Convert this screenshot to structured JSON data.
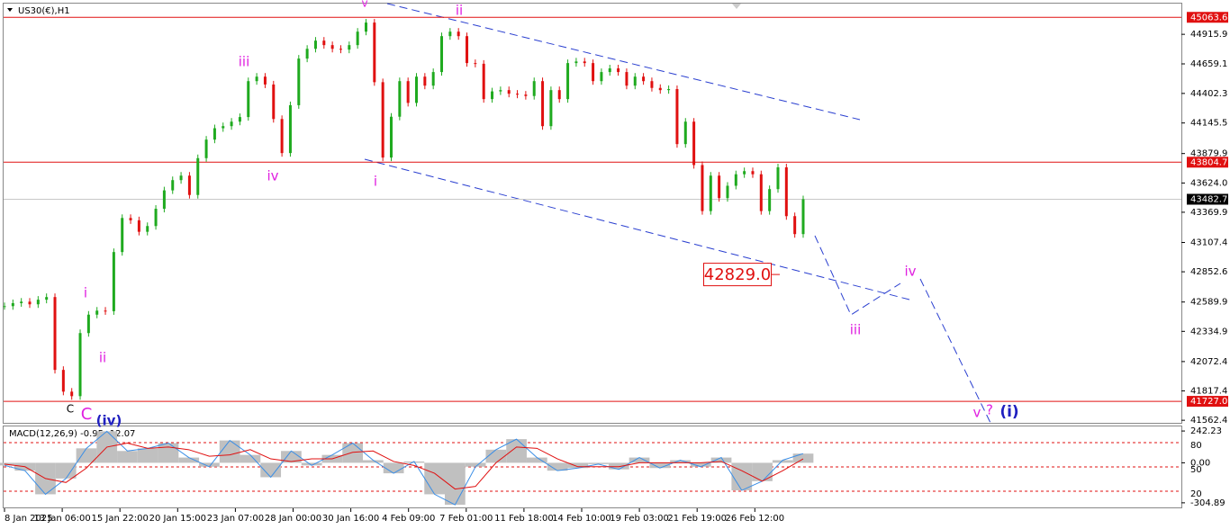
{
  "chart_data": [
    {
      "type": "candlestick",
      "title": "US30(€),H1",
      "values": [
        42554,
        42580,
        42593,
        42570,
        42610,
        42633,
        42000,
        41811,
        41772,
        42320,
        42480,
        42515,
        42510,
        43024,
        43320,
        43300,
        43200,
        43250,
        43400,
        43560,
        43649,
        43688,
        43520,
        43840,
        44001,
        44100,
        44118,
        44157,
        44197,
        44509,
        44548,
        44480,
        44180,
        43884,
        44300,
        44705,
        44790,
        44861,
        44822,
        44790,
        44783,
        44822,
        44939,
        45018,
        44500,
        43845,
        44200,
        44509,
        44320,
        44548,
        44470,
        44588,
        44900,
        44939,
        44900,
        44666,
        44660,
        44353,
        44420,
        44431,
        44400,
        44392,
        44380,
        44509,
        44118,
        44431,
        44353,
        44666,
        44680,
        44666,
        44509,
        44588,
        44620,
        44588,
        44470,
        44548,
        44509,
        44450,
        44431,
        44440,
        43962,
        44157,
        43780,
        43380,
        43688,
        43493,
        43600,
        43700,
        43727,
        43700,
        43380,
        43571,
        43760,
        43336,
        43180,
        43483
      ],
      "up_color": "#1faa1f",
      "down_color": "#e01010",
      "ylim": [
        41540,
        45175
      ],
      "yticks": [
        44915.9,
        44659.1,
        44402.3,
        44145.5,
        43879.9,
        {
          "value": 43624,
          "label": "43624.0"
        },
        43369.9,
        43107.4,
        42852.6,
        42589.9,
        42334.9,
        42072.4,
        41817.4,
        41562.4
      ],
      "hlines": [
        45063.6,
        43804.7,
        {
          "value": 41727,
          "label": "41727.0"
        }
      ],
      "hline_color": "#e01010",
      "last_price": 43482.7,
      "target": {
        "value": 42829,
        "label": "42829.0"
      },
      "time_labels": [
        "8 Jan 2025",
        "13 Jan 06:00",
        "15 Jan 22:00",
        "20 Jan 15:00",
        "23 Jan 07:00",
        "28 Jan 00:00",
        "30 Jan 16:00",
        "4 Feb 09:00",
        "7 Feb 01:00",
        "11 Feb 18:00",
        "14 Feb 10:00",
        "19 Feb 03:00",
        "21 Feb 19:00",
        "26 Feb 12:00"
      ],
      "annotations": [
        {
          "text": "v",
          "color": "#e020e0"
        },
        {
          "text": "ii",
          "color": "#e020e0"
        },
        {
          "text": "iii",
          "color": "#e020e0"
        },
        {
          "text": "iv",
          "color": "#e020e0"
        },
        {
          "text": "i",
          "color": "#e020e0"
        },
        {
          "text": "i",
          "color": "#e020e0"
        },
        {
          "text": "ii",
          "color": "#e020e0"
        },
        {
          "text": "C",
          "color": "#000000"
        },
        {
          "text": "C",
          "color": "#e020e0"
        },
        {
          "text": "(iv)",
          "color": "#2020c0"
        },
        {
          "text": "iii",
          "color": "#e020e0"
        },
        {
          "text": "iv",
          "color": "#e020e0"
        },
        {
          "text": "v",
          "color": "#e020e0"
        },
        {
          "text": "?",
          "color": "#e020e0"
        },
        {
          "text": "(i)",
          "color": "#2020c0"
        }
      ]
    },
    {
      "type": "macd",
      "title": "MACD(12,26,9) -0.95 -12.07",
      "series": [
        {
          "values": [
            -20,
            -60,
            -240,
            -120,
            110,
            240,
            90,
            110,
            150,
            40,
            -30,
            170,
            60,
            -110,
            90,
            -20,
            60,
            150,
            20,
            -80,
            10,
            -240,
            -320,
            -30,
            100,
            180,
            40,
            -60,
            -40,
            -10,
            -50,
            40,
            -40,
            20,
            -30,
            40,
            -210,
            -140,
            20,
            70
          ],
          "color": "#3a8ee6",
          "hist_color": "#c0c0c0"
        },
        {
          "values": [
            -10,
            -30,
            -120,
            -150,
            -40,
            120,
            150,
            110,
            120,
            100,
            50,
            60,
            100,
            30,
            10,
            30,
            30,
            80,
            90,
            10,
            -20,
            -80,
            -200,
            -180,
            0,
            120,
            110,
            30,
            -30,
            -30,
            -30,
            0,
            0,
            0,
            0,
            10,
            -60,
            -140,
            -60,
            30
          ],
          "color": "#e01010"
        }
      ],
      "ylim": [
        -340,
        277
      ],
      "yticks": [
        242.23,
        {
          "value": 0,
          "label": "0.00"
        },
        -304.89
      ],
      "y2lim": [
        0,
        100
      ],
      "y2ticks": [
        20,
        50,
        80
      ]
    }
  ]
}
